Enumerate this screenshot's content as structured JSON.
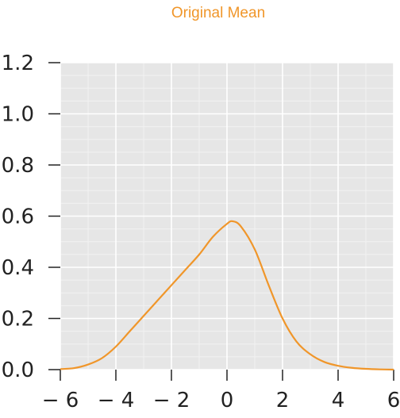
{
  "chart_data": {
    "type": "line",
    "title": "Original Mean",
    "xlabel": "",
    "ylabel": "",
    "xlim": [
      -6,
      6
    ],
    "ylim": [
      0,
      1.2
    ],
    "grid": true,
    "x_ticks": [
      -6,
      -4,
      -2,
      0,
      2,
      4,
      6
    ],
    "x_tick_labels": [
      "− 6",
      "− 4",
      "− 2",
      "0",
      "2",
      "4",
      "6"
    ],
    "y_ticks": [
      0,
      0.2,
      0.4,
      0.6,
      0.8,
      1.0,
      1.2
    ],
    "y_tick_labels": [
      "0.0",
      "0.2",
      "0.4",
      "0.6",
      "0.8",
      "1.0",
      "1.2"
    ],
    "series": [
      {
        "color": "#f0962a",
        "x": [
          -6,
          -5.5,
          -5,
          -4.5,
          -4,
          -3.5,
          -3,
          -2.5,
          -2,
          -1.5,
          -1,
          -0.5,
          0,
          0.2,
          0.5,
          1,
          1.5,
          2,
          2.5,
          3,
          3.5,
          4,
          4.5,
          5,
          5.5,
          6
        ],
        "y": [
          0.002,
          0.006,
          0.02,
          0.045,
          0.09,
          0.15,
          0.21,
          0.27,
          0.33,
          0.39,
          0.45,
          0.52,
          0.57,
          0.58,
          0.56,
          0.47,
          0.33,
          0.2,
          0.11,
          0.06,
          0.03,
          0.015,
          0.007,
          0.003,
          0.001,
          0.0
        ]
      }
    ],
    "colors": {
      "background": "#e6e6e6",
      "grid_major": "#ffffff",
      "grid_minor": "#f2f2f2",
      "line": "#f0962a"
    }
  }
}
